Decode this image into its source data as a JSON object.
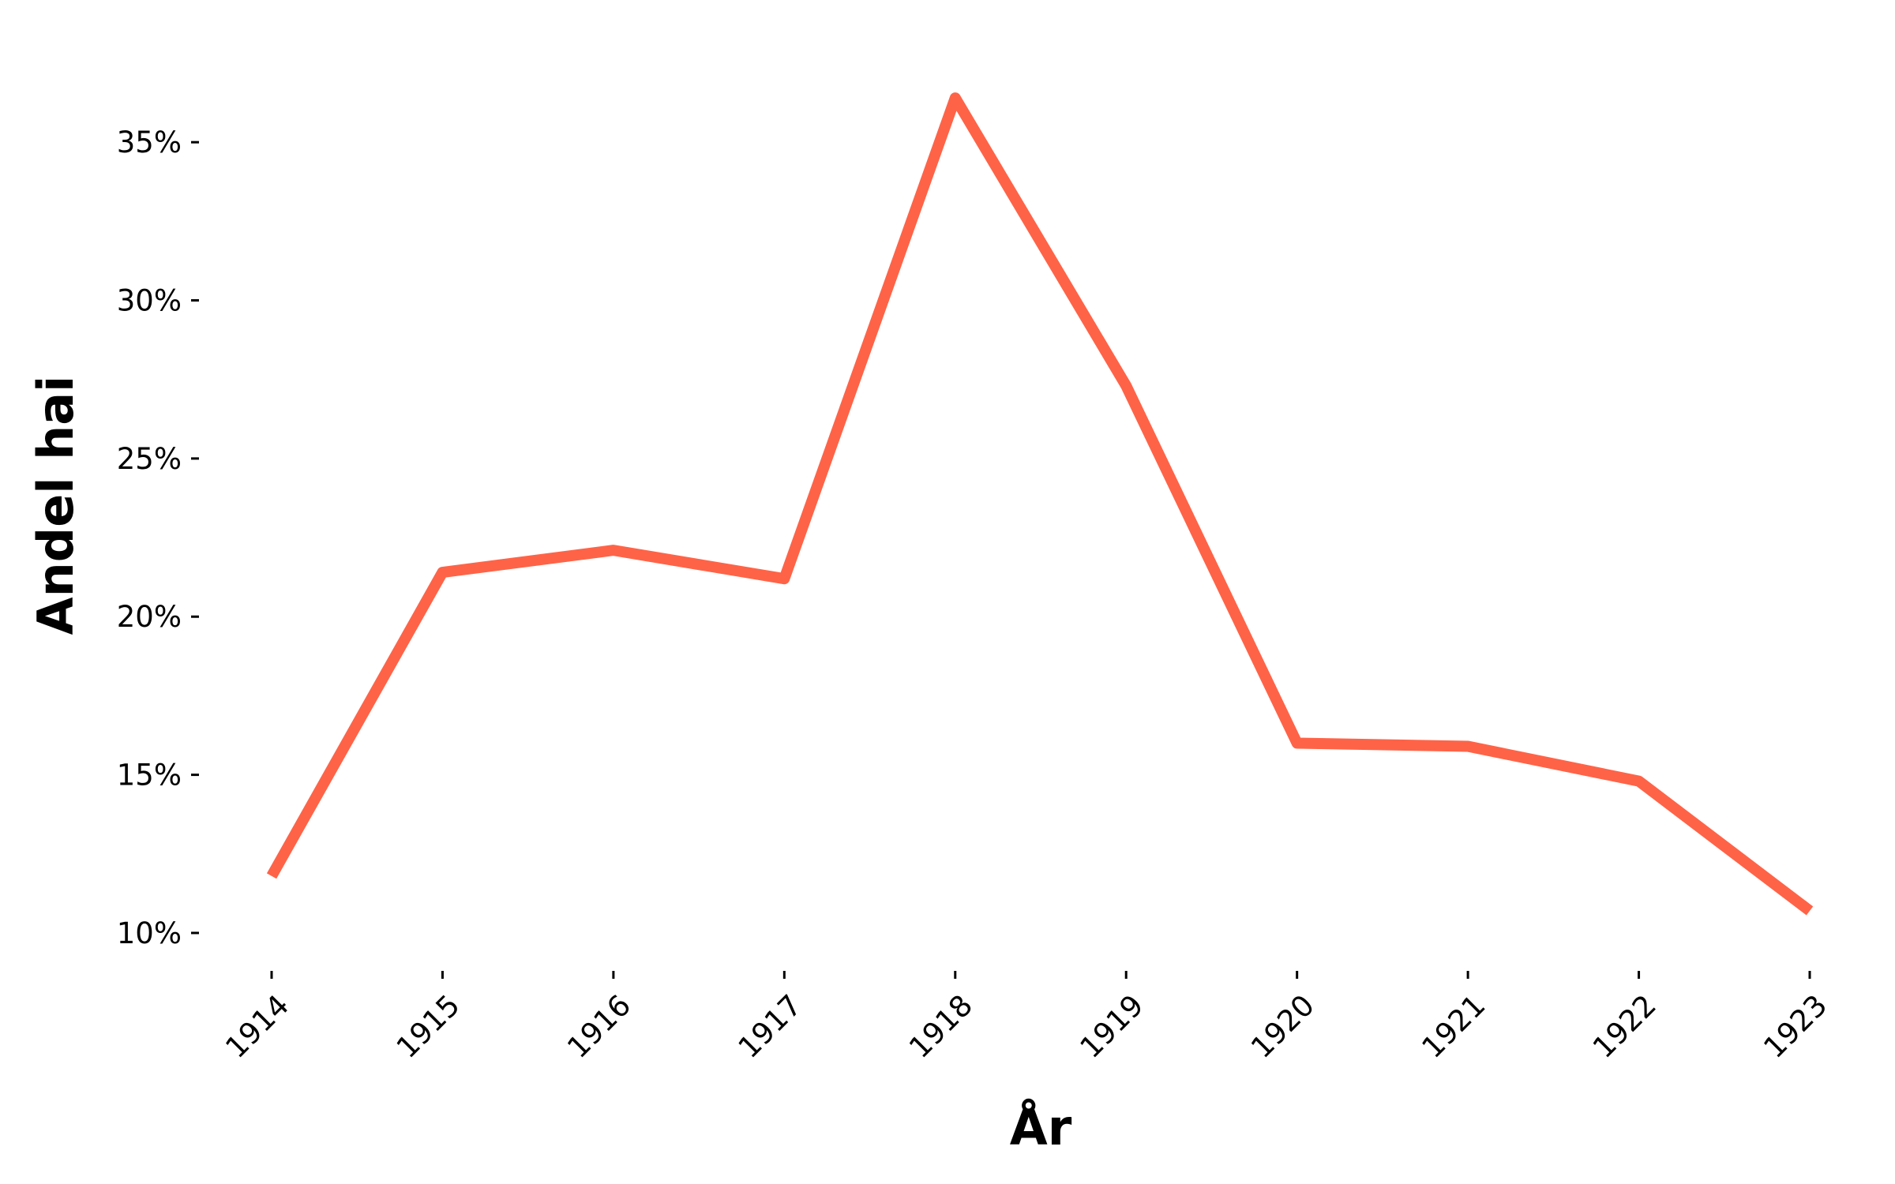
{
  "chart_data": {
    "type": "line",
    "title": "",
    "xlabel": "År",
    "ylabel": "Andel hai",
    "x": [
      "1914",
      "1915",
      "1916",
      "1917",
      "1918",
      "1919",
      "1920",
      "1921",
      "1922",
      "1923"
    ],
    "series": [
      {
        "values": [
          11.8,
          21.4,
          22.1,
          21.2,
          36.4,
          27.3,
          16.0,
          15.9,
          14.8,
          10.7
        ],
        "color": "#ff6347"
      }
    ],
    "yticks": [
      10,
      15,
      20,
      25,
      30,
      35
    ],
    "ytick_labels": [
      "10%",
      "15%",
      "20%",
      "25%",
      "30%",
      "35%"
    ],
    "ylim": [
      9.3,
      37.5
    ],
    "grid": false,
    "legend": "none",
    "xtick_rotation": -45
  }
}
